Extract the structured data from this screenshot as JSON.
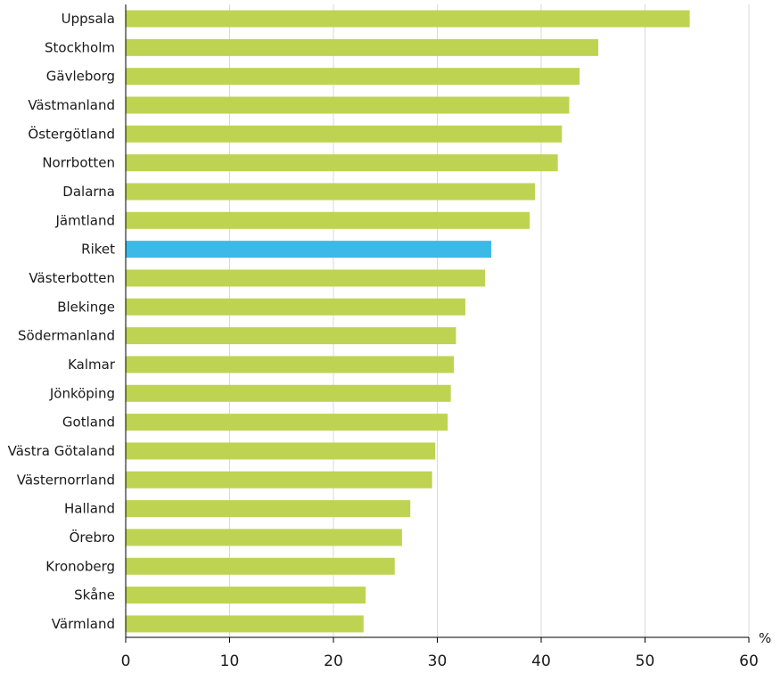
{
  "chart_data": {
    "type": "bar",
    "orientation": "horizontal",
    "categories": [
      "Uppsala",
      "Stockholm",
      "Gävleborg",
      "Västmanland",
      "Östergötland",
      "Norrbotten",
      "Dalarna",
      "Jämtland",
      "Riket",
      "Västerbotten",
      "Blekinge",
      "Södermanland",
      "Kalmar",
      "Jönköping",
      "Gotland",
      "Västra Götaland",
      "Västernorrland",
      "Halland",
      "Örebro",
      "Kronoberg",
      "Skåne",
      "Värmland"
    ],
    "values": [
      54.3,
      45.5,
      43.7,
      42.7,
      42.0,
      41.6,
      39.4,
      38.9,
      35.2,
      34.6,
      32.7,
      31.8,
      31.6,
      31.3,
      31.0,
      29.8,
      29.5,
      27.4,
      26.6,
      25.9,
      23.1,
      22.9
    ],
    "highlight_category": "Riket",
    "xlim": [
      0,
      60
    ],
    "xticks": [
      0,
      10,
      20,
      30,
      40,
      50,
      60
    ],
    "unit": "%",
    "grid": true,
    "colors": {
      "bar": "#bfd352",
      "highlight": "#3db9e8",
      "grid": "#d9d9d9",
      "axis": "#000000",
      "text": "#1a1a1a"
    }
  }
}
